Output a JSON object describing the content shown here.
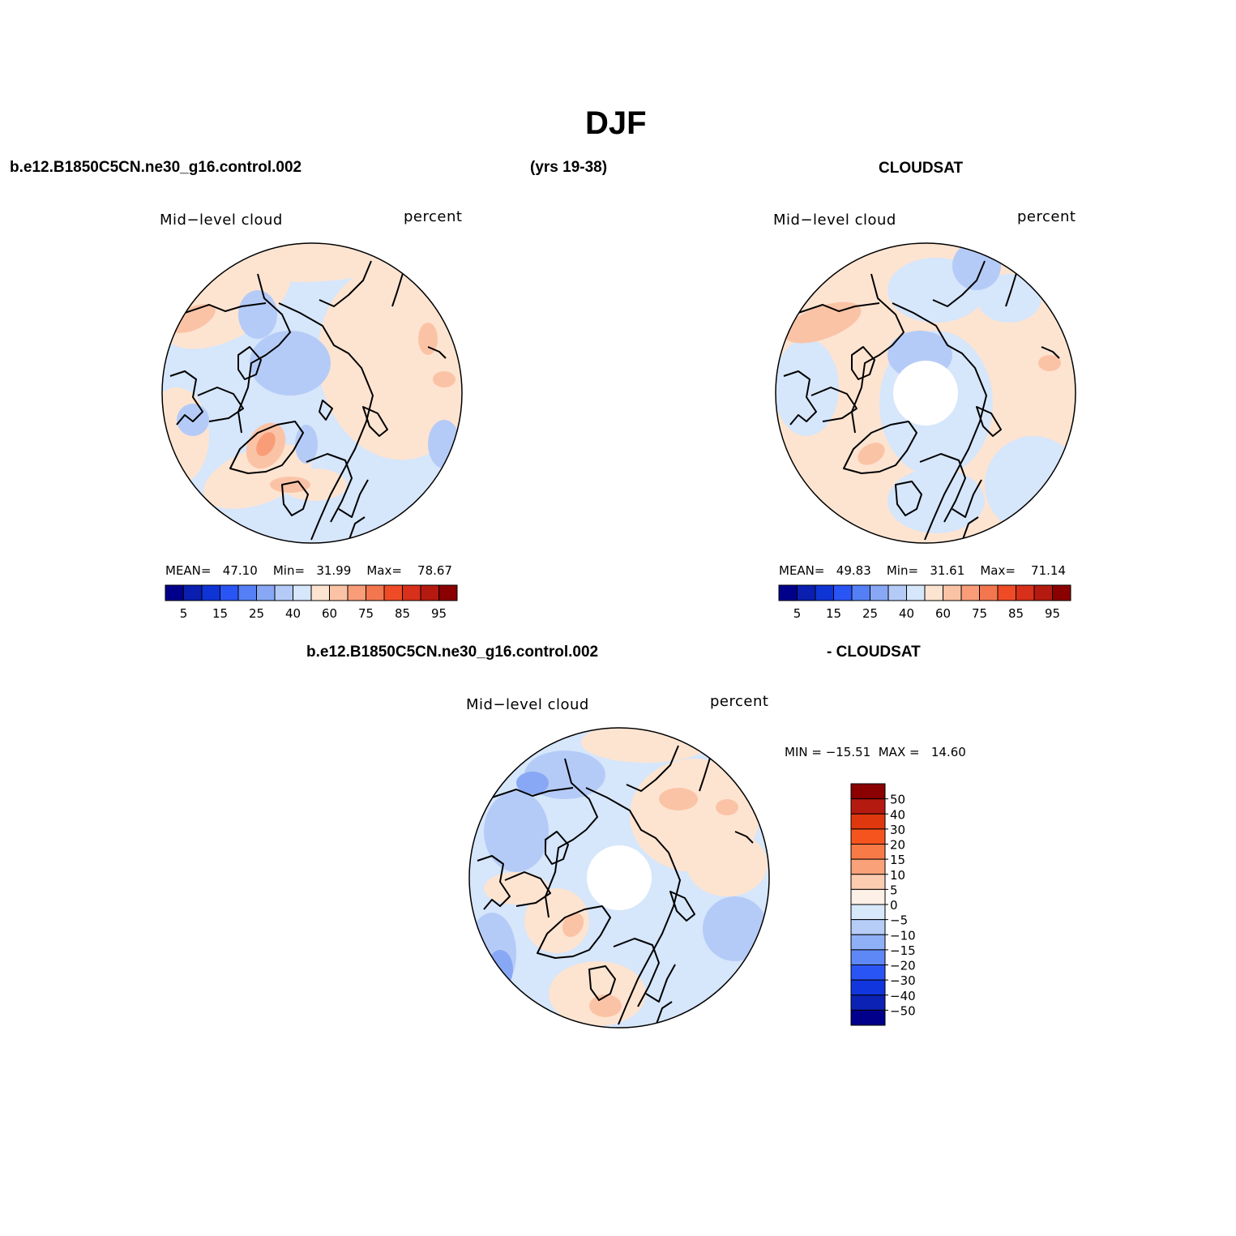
{
  "title": "DJF",
  "header": {
    "model_case": "b.e12.B1850C5CN.ne30_g16.control.002",
    "years": "(yrs 19-38)",
    "obs": "CLOUDSAT",
    "diff_case": "b.e12.B1850C5CN.ne30_g16.control.002",
    "diff_obs": "- CLOUDSAT"
  },
  "panels": [
    {
      "variable": "Mid−level cloud",
      "units": "percent",
      "stats": {
        "mean_label": "MEAN=",
        "mean": "47.10",
        "min_label": "Min=",
        "min": "31.99",
        "max_label": "Max=",
        "max": "78.67"
      },
      "has_polar_hole": false
    },
    {
      "variable": "Mid−level cloud",
      "units": "percent",
      "stats": {
        "mean_label": "MEAN=",
        "mean": "49.83",
        "min_label": "Min=",
        "min": "31.61",
        "max_label": "Max=",
        "max": "71.14"
      },
      "has_polar_hole": true
    },
    {
      "variable": "Mid−level cloud",
      "units": "percent",
      "stats": {
        "text": "MIN = −15.51  MAX =   14.60"
      },
      "has_polar_hole": true
    }
  ],
  "colorbar_abs": {
    "colors": [
      "#00008b",
      "#0a1fb0",
      "#0f34d6",
      "#2a55f5",
      "#5580f5",
      "#88a8f5",
      "#b5cbf7",
      "#d6e6fb",
      "#fde4d1",
      "#fbc3a6",
      "#f89d78",
      "#f4764f",
      "#ef4b26",
      "#d8301a",
      "#b51a10",
      "#8b0000"
    ],
    "tick_labels": [
      "5",
      "15",
      "25",
      "40",
      "60",
      "75",
      "85",
      "95"
    ]
  },
  "colorbar_diff": {
    "colors": [
      "#8b0000",
      "#b51a10",
      "#e0380e",
      "#f5541f",
      "#f87a46",
      "#f9a27a",
      "#fcccb1",
      "#fdf0e6",
      "#d7e8fb",
      "#b6cdf8",
      "#8fb0f6",
      "#5e88f5",
      "#2a55f5",
      "#1236dd",
      "#0b22b4",
      "#00008b"
    ],
    "tick_labels": [
      "50",
      "40",
      "30",
      "20",
      "15",
      "10",
      "5",
      "0",
      "−5",
      "−10",
      "−15",
      "−20",
      "−30",
      "−40",
      "−50"
    ]
  },
  "map_colors": {
    "light_blue": "#d6e6fb",
    "blue": "#b5cbf7",
    "mid_blue": "#88a8f5",
    "peach": "#fde4d1",
    "salmon": "#fbc3a6",
    "orange": "#f89d78",
    "red": "#f4764f",
    "coast": "#000000"
  }
}
